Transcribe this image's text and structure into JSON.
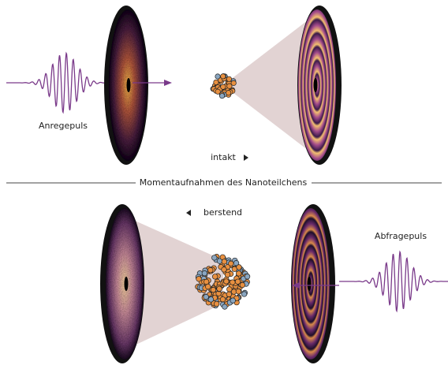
{
  "labels": {
    "pump": "Anregepuls",
    "intact": "intakt",
    "caption": "Momentaufnahmen des Nanoteilchens",
    "bursting": "berstend",
    "probe": "Abfragepuls"
  }
}
